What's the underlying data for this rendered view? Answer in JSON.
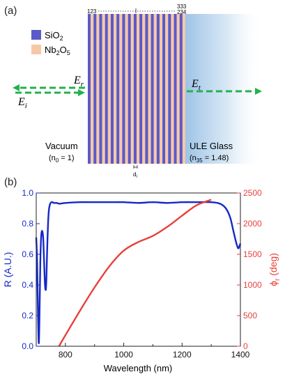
{
  "panel_a": {
    "label": "(a)",
    "legend": [
      {
        "main": "SiO",
        "sub": "2",
        "tail": "",
        "tail_sub": "",
        "color": "#5a5ac8"
      },
      {
        "main": "Nb",
        "sub": "2",
        "tail": "O",
        "tail_sub": "5",
        "color": "#f7c8a8"
      }
    ],
    "top_labels": {
      "left": "123",
      "right_top": "333",
      "right_bottom": "234"
    },
    "field_labels": {
      "er": "E",
      "er_sub": "r",
      "ei": "E",
      "ei_sub": "i",
      "et": "E",
      "et_sub": "t"
    },
    "vacuum": {
      "name": "Vacuum",
      "index_pre": "(n",
      "index_sub": "0",
      "index_post": " = 1)"
    },
    "glass": {
      "name": "ULE Glass",
      "index_pre": "(n",
      "index_sub": "35",
      "index_post": " = 1.48)"
    },
    "thickness": {
      "main": "d",
      "sub": "i"
    },
    "colors": {
      "layer_a": "#5a5ac8",
      "layer_b": "#f7c8a8",
      "arrow": "#22b14c",
      "glass": "#9dc3e6"
    }
  },
  "panel_b": {
    "label": "(b)",
    "chart_data": {
      "type": "line",
      "xlabel": "Wavelength (nm)",
      "ylabel_left": "R (A.U.)",
      "ylabel_right_main": "ϕ",
      "ylabel_right_sub": "r",
      "ylabel_right_post": " (deg)",
      "xlim": [
        700,
        1400
      ],
      "ylim_left": [
        0,
        1.0
      ],
      "ylim_right": [
        0,
        2500
      ],
      "xticks": [
        "800",
        "1000",
        "1200",
        "1400"
      ],
      "yticks_left": [
        "0.0",
        "0.2",
        "0.4",
        "0.6",
        "0.8",
        "1.0"
      ],
      "yticks_right": [
        "0",
        "500",
        "1000",
        "1500",
        "2000",
        "2500"
      ],
      "series": [
        {
          "axis": "left",
          "color": "#1428c8",
          "x": [
            700,
            703,
            706,
            709,
            712,
            714,
            716,
            718,
            721,
            724,
            727,
            730,
            733,
            735,
            737,
            739,
            741,
            743,
            745,
            748,
            752,
            756,
            760,
            770,
            780,
            800,
            850,
            900,
            950,
            1000,
            1050,
            1100,
            1150,
            1200,
            1250,
            1300,
            1330,
            1350,
            1365,
            1375,
            1385,
            1392,
            1396,
            1400
          ],
          "y": [
            0.71,
            0.55,
            0.22,
            0.02,
            0.3,
            0.55,
            0.68,
            0.74,
            0.75,
            0.7,
            0.55,
            0.4,
            0.37,
            0.45,
            0.6,
            0.72,
            0.82,
            0.88,
            0.91,
            0.93,
            0.94,
            0.94,
            0.935,
            0.935,
            0.93,
            0.935,
            0.94,
            0.94,
            0.94,
            0.94,
            0.935,
            0.94,
            0.935,
            0.94,
            0.94,
            0.94,
            0.93,
            0.9,
            0.84,
            0.76,
            0.68,
            0.64,
            0.65,
            0.67
          ]
        },
        {
          "axis": "right",
          "color": "#e8403a",
          "x": [
            778,
            800,
            850,
            900,
            950,
            1000,
            1050,
            1100,
            1150,
            1200,
            1250,
            1300
          ],
          "y": [
            0,
            180,
            580,
            960,
            1300,
            1560,
            1700,
            1800,
            1950,
            2130,
            2300,
            2390
          ]
        }
      ]
    },
    "colors": {
      "left_axis": "#1428c8",
      "right_axis": "#e8403a"
    }
  }
}
